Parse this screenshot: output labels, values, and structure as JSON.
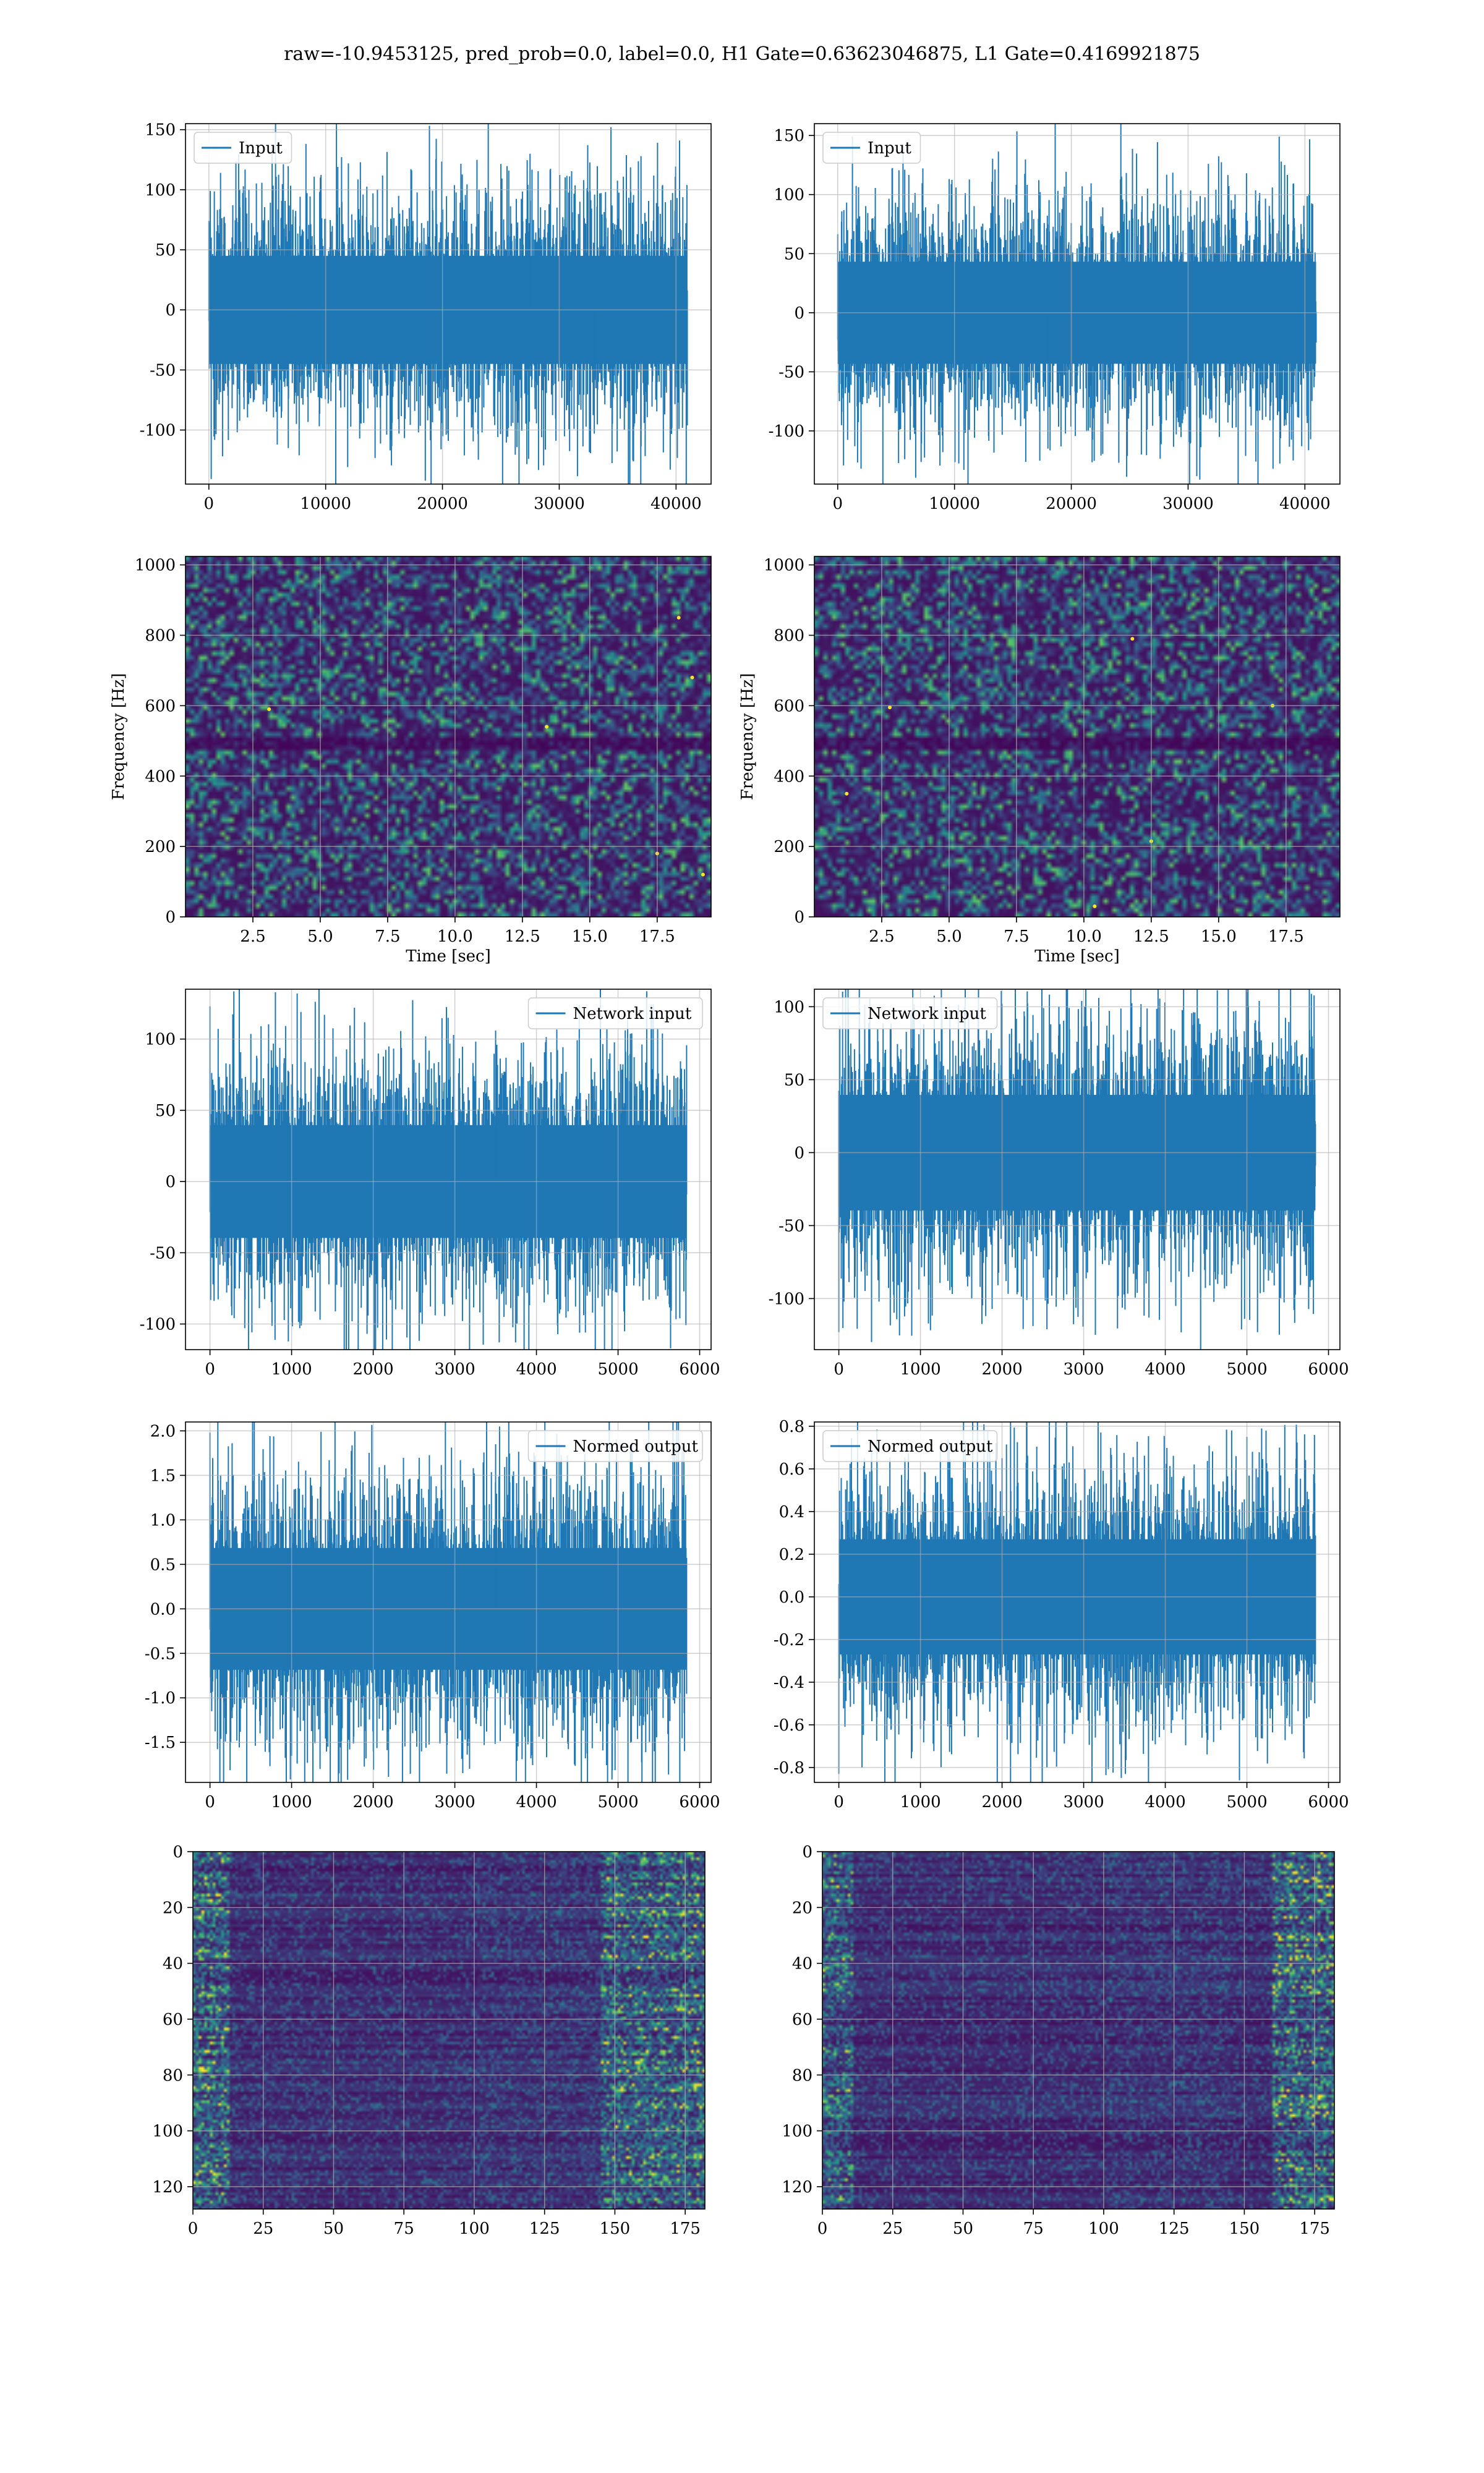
{
  "figure": {
    "title": "raw=-10.9453125, pred_prob=0.0, label=0.0, H1 Gate=0.63623046875, L1 Gate=0.4169921875"
  },
  "colors": {
    "line": "#1f77b4",
    "grid": "#b0b0b0",
    "axes": "#000000",
    "spec_bg": "#3b0f70",
    "viridis": [
      "#440154",
      "#3b528b",
      "#21918c",
      "#5ec962",
      "#fde725"
    ]
  },
  "chart_data": [
    {
      "id": "input-h1",
      "type": "line",
      "legend": "Input",
      "legend_loc": "upper-left",
      "xlabel": "",
      "ylabel": "",
      "xlim": [
        -2000,
        43000
      ],
      "ylim": [
        -145,
        155
      ],
      "xticks": [
        0,
        10000,
        20000,
        30000,
        40000
      ],
      "yticks": [
        -100,
        -50,
        0,
        50,
        100,
        150
      ],
      "n_samples": 40960,
      "noise_std": 25,
      "peaks": [
        {
          "x": 40300,
          "y": 141
        },
        {
          "x": 37000,
          "y": 128
        },
        {
          "x": 27500,
          "y": 130
        },
        {
          "x": 1000,
          "y": 114
        },
        {
          "x": 39500,
          "y": -133
        },
        {
          "x": 6800,
          "y": -115
        },
        {
          "x": 36300,
          "y": -125
        },
        {
          "x": 20500,
          "y": -109
        },
        {
          "x": 33000,
          "y": -103
        }
      ]
    },
    {
      "id": "input-l1",
      "type": "line",
      "legend": "Input",
      "legend_loc": "upper-left",
      "xlabel": "",
      "ylabel": "",
      "xlim": [
        -2000,
        43000
      ],
      "ylim": [
        -145,
        160
      ],
      "xticks": [
        0,
        10000,
        20000,
        30000,
        40000
      ],
      "yticks": [
        -100,
        -50,
        0,
        50,
        100,
        150
      ],
      "n_samples": 40960,
      "noise_std": 24,
      "peaks": [
        {
          "x": 37800,
          "y": 149
        },
        {
          "x": 35000,
          "y": 118
        },
        {
          "x": 2000,
          "y": -132
        },
        {
          "x": 26000,
          "y": -120
        },
        {
          "x": 9000,
          "y": -118
        },
        {
          "x": 18000,
          "y": -115
        }
      ]
    },
    {
      "id": "spec-h1",
      "type": "heatmap",
      "variant": "spectrogram",
      "xlabel": "Time [sec]",
      "ylabel": "Frequency [Hz]",
      "xlim": [
        0,
        19.5
      ],
      "ylim": [
        0,
        1024
      ],
      "xticks": [
        2.5,
        5.0,
        7.5,
        10.0,
        12.5,
        15.0,
        17.5
      ],
      "yticks": [
        0,
        200,
        400,
        600,
        800,
        1000
      ],
      "hot_points": [
        [
          17.5,
          180
        ],
        [
          18.3,
          850
        ],
        [
          18.8,
          680
        ],
        [
          19.2,
          120
        ],
        [
          13.4,
          540
        ],
        [
          3.1,
          590
        ]
      ],
      "band_hz": [
        500,
        20
      ]
    },
    {
      "id": "spec-l1",
      "type": "heatmap",
      "variant": "spectrogram",
      "xlabel": "Time [sec]",
      "ylabel": "Frequency [Hz]",
      "xlim": [
        0,
        19.5
      ],
      "ylim": [
        0,
        1024
      ],
      "xticks": [
        2.5,
        5.0,
        7.5,
        10.0,
        12.5,
        15.0,
        17.5
      ],
      "yticks": [
        0,
        200,
        400,
        600,
        800,
        1000
      ],
      "hot_points": [
        [
          2.8,
          595
        ],
        [
          1.2,
          350
        ],
        [
          11.8,
          790
        ],
        [
          12.5,
          215
        ],
        [
          10.4,
          30
        ],
        [
          17.0,
          600
        ]
      ],
      "band_hz": [
        500,
        20
      ]
    },
    {
      "id": "network-h1",
      "type": "line",
      "legend": "Network input",
      "legend_loc": "upper-right",
      "xlabel": "",
      "ylabel": "",
      "xlim": [
        -300,
        6140
      ],
      "ylim": [
        -118,
        135
      ],
      "xticks": [
        0,
        1000,
        2000,
        3000,
        4000,
        5000,
        6000
      ],
      "yticks": [
        -100,
        -50,
        0,
        50,
        100
      ],
      "n_samples": 5840,
      "noise_std": 22,
      "peaks": [
        {
          "x": 0,
          "y": 123
        },
        {
          "x": 3500,
          "y": 106
        },
        {
          "x": 1100,
          "y": -103
        },
        {
          "x": 2600,
          "y": -100
        },
        {
          "x": 4600,
          "y": -106
        }
      ]
    },
    {
      "id": "network-l1",
      "type": "line",
      "legend": "Network input",
      "legend_loc": "upper-left",
      "xlabel": "",
      "ylabel": "",
      "xlim": [
        -300,
        6140
      ],
      "ylim": [
        -135,
        112
      ],
      "xticks": [
        0,
        1000,
        2000,
        3000,
        4000,
        5000,
        6000
      ],
      "yticks": [
        -100,
        -50,
        0,
        50,
        100
      ],
      "n_samples": 5840,
      "noise_std": 22,
      "peaks": [
        {
          "x": 0,
          "y": -123
        },
        {
          "x": 2000,
          "y": 102
        },
        {
          "x": 5000,
          "y": 110
        },
        {
          "x": 2550,
          "y": -121
        },
        {
          "x": 1800,
          "y": -112
        },
        {
          "x": 3800,
          "y": -113
        }
      ]
    },
    {
      "id": "normed-h1",
      "type": "line",
      "legend": "Normed output",
      "legend_loc": "upper-right",
      "xlabel": "",
      "ylabel": "",
      "xlim": [
        -300,
        6140
      ],
      "ylim": [
        -1.95,
        2.1
      ],
      "xticks": [
        0,
        1000,
        2000,
        3000,
        4000,
        5000,
        6000
      ],
      "yticks": [
        -1.5,
        -1.0,
        -0.5,
        0.0,
        0.5,
        1.0,
        1.5,
        2.0
      ],
      "n_samples": 5840,
      "noise_std": 0.38,
      "peaks": [
        {
          "x": 0,
          "y": 1.98
        },
        {
          "x": 3500,
          "y": 1.85
        },
        {
          "x": 1000,
          "y": -1.65
        },
        {
          "x": 2000,
          "y": -1.6
        },
        {
          "x": 4600,
          "y": -1.68
        }
      ]
    },
    {
      "id": "normed-l1",
      "type": "line",
      "legend": "Normed output",
      "legend_loc": "upper-left",
      "xlabel": "",
      "ylabel": "",
      "xlim": [
        -300,
        6140
      ],
      "ylim": [
        -0.87,
        0.82
      ],
      "xticks": [
        0,
        1000,
        2000,
        3000,
        4000,
        5000,
        6000
      ],
      "yticks": [
        -0.8,
        -0.6,
        -0.4,
        -0.2,
        0.0,
        0.2,
        0.4,
        0.6,
        0.8
      ],
      "n_samples": 5840,
      "noise_std": 0.15,
      "peaks": [
        {
          "x": 0,
          "y": -0.83
        },
        {
          "x": 5000,
          "y": 0.75
        },
        {
          "x": 5400,
          "y": 0.7
        },
        {
          "x": 2000,
          "y": 0.65
        },
        {
          "x": 2550,
          "y": -0.8
        },
        {
          "x": 1000,
          "y": -0.62
        }
      ]
    },
    {
      "id": "feature-h1",
      "type": "heatmap",
      "variant": "feature-map",
      "xlabel": "",
      "ylabel": "",
      "xlim": [
        0,
        182
      ],
      "ylim": [
        128,
        0
      ],
      "xticks": [
        0,
        25,
        50,
        75,
        100,
        125,
        150,
        175
      ],
      "yticks": [
        0,
        20,
        40,
        60,
        80,
        100,
        120
      ],
      "rows": 128,
      "cols": 182,
      "hot_cols": [
        [
          0,
          12,
          0.7
        ],
        [
          145,
          182,
          0.65
        ]
      ]
    },
    {
      "id": "feature-l1",
      "type": "heatmap",
      "variant": "feature-map",
      "xlabel": "",
      "ylabel": "",
      "xlim": [
        0,
        182
      ],
      "ylim": [
        128,
        0
      ],
      "xticks": [
        0,
        25,
        50,
        75,
        100,
        125,
        150,
        175
      ],
      "yticks": [
        0,
        20,
        40,
        60,
        80,
        100,
        120
      ],
      "rows": 128,
      "cols": 182,
      "hot_cols": [
        [
          0,
          10,
          0.55
        ],
        [
          160,
          182,
          0.75
        ]
      ]
    }
  ]
}
